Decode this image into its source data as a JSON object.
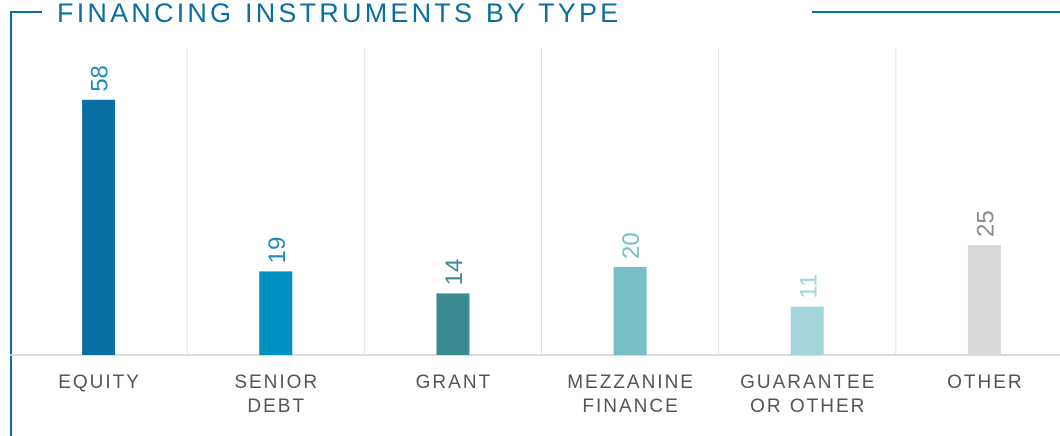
{
  "chart_data": {
    "type": "bar",
    "title": "FINANCING INSTRUMENTS BY TYPE",
    "categories": [
      [
        "EQUITY"
      ],
      [
        "SENIOR",
        "DEBT"
      ],
      [
        "GRANT"
      ],
      [
        "MEZZANINE",
        "FINANCE"
      ],
      [
        "GUARANTEE",
        "OR OTHER"
      ],
      [
        "OTHER"
      ]
    ],
    "values": [
      58,
      19,
      14,
      20,
      11,
      25
    ],
    "colors": [
      "#0a6fa3",
      "#0090c2",
      "#3b8b92",
      "#76c0c5",
      "#a3d5d9",
      "#d9d9d9"
    ],
    "label_colors": [
      "#1a8cc0",
      "#1a8cc0",
      "#3b8b92",
      "#76c0c5",
      "#a3d5d9",
      "#8a8a8a"
    ]
  }
}
